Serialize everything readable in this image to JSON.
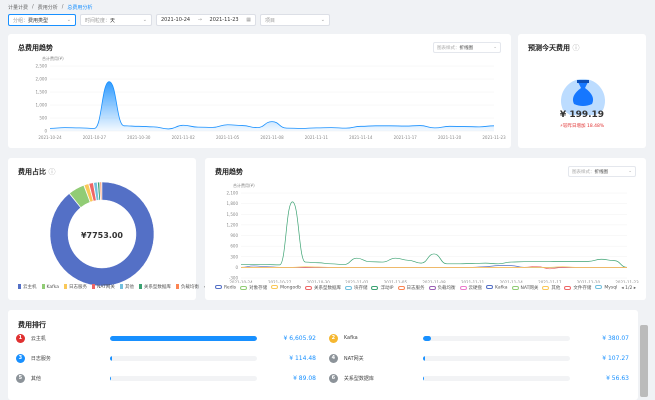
{
  "breadcrumb": [
    "计量计费",
    "费用分析",
    "总费用分析"
  ],
  "filters": {
    "group_label": "分组：",
    "group_value": "费用类型",
    "time_label": "时间粒度：",
    "time_value": "天",
    "start": "2021-10-24",
    "sep": "→",
    "end": "2021-11-23",
    "project_placeholder": "项目"
  },
  "total_trend": {
    "title": "总费用趋势",
    "chart_type_label": "图表样式：",
    "chart_type_value": "折线图"
  },
  "forecast": {
    "title": "预测今天费用",
    "value": "¥ 199.19",
    "change": "较昨日增加 18.48%"
  },
  "share": {
    "title": "费用占比",
    "total": "¥7753.00",
    "page": "1/2"
  },
  "trend": {
    "title": "费用趋势",
    "chart_type_label": "图表样式：",
    "chart_type_value": "折线图",
    "page": "1/2"
  },
  "ranking": {
    "title": "费用排行",
    "items": [
      {
        "rank": "1",
        "name": "云主机",
        "value": "¥ 6,605.92",
        "amount": 6605.92,
        "color": "#e03131"
      },
      {
        "rank": "2",
        "name": "Kafka",
        "value": "¥ 380.07",
        "amount": 380.07,
        "color": "#f5b731"
      },
      {
        "rank": "3",
        "name": "日志服务",
        "value": "¥ 114.48",
        "amount": 114.48,
        "color": "#1890ff"
      },
      {
        "rank": "4",
        "name": "NAT网关",
        "value": "¥ 107.27",
        "amount": 107.27,
        "color": "#8c9399"
      },
      {
        "rank": "5",
        "name": "其他",
        "value": "¥ 89.08",
        "amount": 89.08,
        "color": "#8c9399"
      },
      {
        "rank": "6",
        "name": "关系型数据库",
        "value": "¥ 56.63",
        "amount": 56.63,
        "color": "#8c9399"
      }
    ]
  },
  "chart_data": [
    {
      "type": "area",
      "ylabel": "合计费用(¥)",
      "ylim": [
        0,
        2500
      ],
      "yticks": [
        0,
        500,
        "1,000",
        "1,500",
        "2,000",
        "2,500"
      ],
      "xticks": [
        "2021-10-24",
        "2021-10-27",
        "2021-10-30",
        "2021-11-02",
        "2021-11-05",
        "2021-11-08",
        "2021-11-11",
        "2021-11-14",
        "2021-11-17",
        "2021-11-20",
        "2021-11-23"
      ],
      "values": [
        100,
        130,
        120,
        100,
        1900,
        200,
        180,
        160,
        80,
        220,
        150,
        140,
        240,
        210,
        130,
        360,
        110,
        100,
        120,
        130,
        110,
        180,
        200,
        200,
        190,
        210,
        120,
        180,
        170,
        160,
        200,
        20
      ],
      "color": "#1890ff"
    },
    {
      "type": "pie",
      "total": 7753,
      "series": [
        {
          "name": "云主机",
          "value": 6605.92,
          "color": "#5470c6"
        },
        {
          "name": "Kafka",
          "value": 380.07,
          "color": "#91cc75"
        },
        {
          "name": "日志服务",
          "value": 114.48,
          "color": "#fac858"
        },
        {
          "name": "NAT网关",
          "value": 107.27,
          "color": "#ee6666"
        },
        {
          "name": "其他",
          "value": 89.08,
          "color": "#73c0de"
        },
        {
          "name": "关系型数据库",
          "value": 56.63,
          "color": "#3ba272"
        },
        {
          "name": "负载均衡",
          "value": 45,
          "color": "#fc8452"
        }
      ]
    },
    {
      "type": "line",
      "ylabel": "合计费用(¥)",
      "ylim": [
        -300,
        2100
      ],
      "yticks": [
        -300,
        0,
        300,
        600,
        900,
        "1,200",
        "1,500",
        "1,800",
        "2,100"
      ],
      "xticks": [
        "2021-10-24",
        "2021-10-27",
        "2021-10-30",
        "2021-11-02",
        "2021-11-05",
        "2021-11-08",
        "2021-11-11",
        "2021-11-14",
        "2021-11-17",
        "2021-11-20",
        "2021-11-23"
      ],
      "legend": [
        "Redis",
        "对象存储",
        "Mongodb",
        "关系型数据库",
        "块存储",
        "浮动IP",
        "日志服务",
        "负载均衡",
        "云硬盘",
        "Kafka",
        "NAT网关",
        "其他",
        "文件存储",
        "Mysql"
      ],
      "series": [
        {
          "name": "浮动IP",
          "color": "#3ba272",
          "values": [
            80,
            80,
            80,
            70,
            1850,
            150,
            130,
            100,
            80,
            260,
            160,
            150,
            260,
            200,
            120,
            380,
            100,
            100,
            110,
            120,
            100,
            150,
            160,
            160,
            160,
            170,
            170,
            170,
            230,
            190,
            0
          ]
        },
        {
          "name": "Kafka",
          "color": "#5470c6",
          "values": [
            0,
            40,
            20,
            0,
            0,
            0,
            0,
            0,
            0,
            0,
            0,
            0,
            0,
            0,
            0,
            0,
            0,
            0,
            0,
            20,
            50,
            50,
            0,
            0,
            0,
            0,
            0,
            0,
            0,
            0,
            0
          ]
        },
        {
          "name": "文件存储",
          "color": "#ee6666",
          "values": [
            0,
            0,
            0,
            0,
            0,
            0,
            0,
            0,
            0,
            0,
            0,
            0,
            0,
            0,
            0,
            0,
            0,
            0,
            0,
            0,
            0,
            0,
            0,
            30,
            -40,
            0,
            0,
            0,
            0,
            0,
            0
          ]
        },
        {
          "name": "Mongodb",
          "color": "#fac858",
          "values": [
            0,
            0,
            0,
            0,
            0,
            20,
            10,
            0,
            0,
            0,
            0,
            0,
            0,
            0,
            0,
            0,
            0,
            0,
            0,
            0,
            0,
            0,
            0,
            0,
            0,
            20,
            0,
            0,
            0,
            0,
            0
          ]
        }
      ]
    }
  ]
}
